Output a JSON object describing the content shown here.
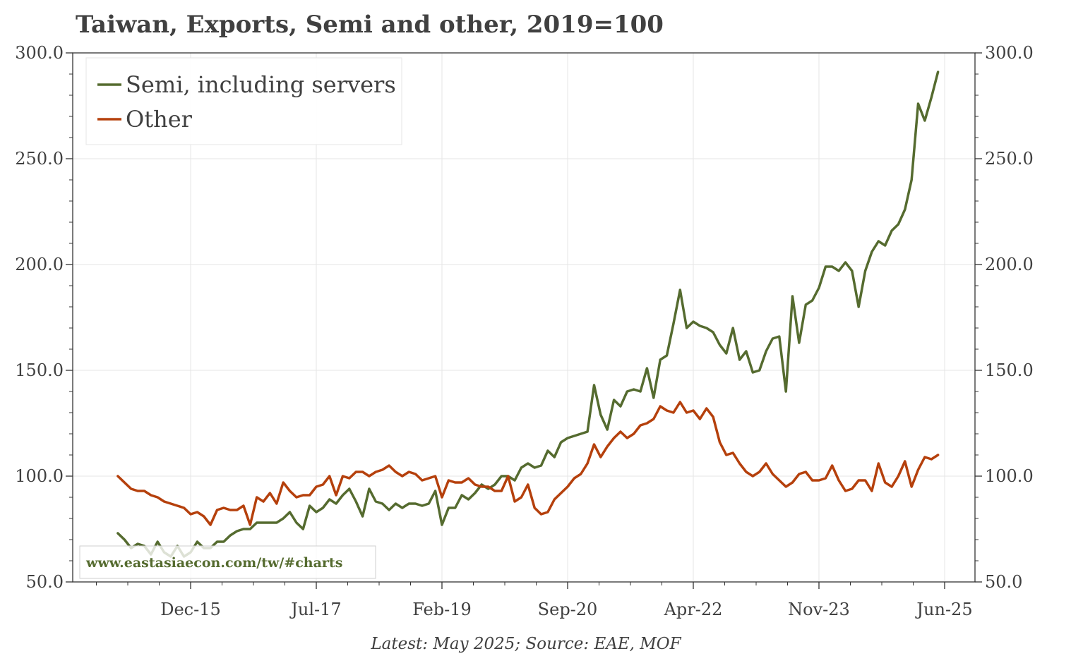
{
  "chart_data": {
    "type": "line",
    "title": "Taiwan, Exports, Semi and other, 2019=100",
    "footer": "Latest: May 2025; Source: EAE, MOF",
    "watermark": "www.eastasiaecon.com/tw/#charts",
    "ylim": [
      50,
      300
    ],
    "y_ticks": [
      "50.0",
      "100.0",
      "150.0",
      "200.0",
      "250.0",
      "300.0"
    ],
    "x_ticks": [
      "Dec-15",
      "Jul-17",
      "Feb-19",
      "Sep-20",
      "Apr-22",
      "Nov-23",
      "Jun-25"
    ],
    "legend_position": "top-left",
    "grid": true,
    "colors": {
      "semi": "#556b2f",
      "other": "#b5400c",
      "text": "#404040",
      "grid": "#e6e6e6"
    },
    "series": [
      {
        "name": "Semi, including servers",
        "color": "#556b2f",
        "points": [
          [
            "2015-01",
            73
          ],
          [
            "2015-02",
            70
          ],
          [
            "2015-03",
            66
          ],
          [
            "2015-04",
            68
          ],
          [
            "2015-05",
            67
          ],
          [
            "2015-06",
            63
          ],
          [
            "2015-07",
            69
          ],
          [
            "2015-08",
            64
          ],
          [
            "2015-09",
            62
          ],
          [
            "2015-10",
            67
          ],
          [
            "2015-11",
            62
          ],
          [
            "2015-12",
            64
          ],
          [
            "2016-01",
            69
          ],
          [
            "2016-02",
            66
          ],
          [
            "2016-03",
            66
          ],
          [
            "2016-04",
            69
          ],
          [
            "2016-05",
            69
          ],
          [
            "2016-06",
            72
          ],
          [
            "2016-07",
            74
          ],
          [
            "2016-08",
            75
          ],
          [
            "2016-09",
            75
          ],
          [
            "2016-10",
            78
          ],
          [
            "2016-11",
            78
          ],
          [
            "2016-12",
            78
          ],
          [
            "2017-01",
            78
          ],
          [
            "2017-02",
            80
          ],
          [
            "2017-03",
            83
          ],
          [
            "2017-04",
            78
          ],
          [
            "2017-05",
            75
          ],
          [
            "2017-06",
            86
          ],
          [
            "2017-07",
            83
          ],
          [
            "2017-08",
            85
          ],
          [
            "2017-09",
            89
          ],
          [
            "2017-10",
            87
          ],
          [
            "2017-11",
            91
          ],
          [
            "2017-12",
            94
          ],
          [
            "2018-01",
            88
          ],
          [
            "2018-02",
            81
          ],
          [
            "2018-03",
            94
          ],
          [
            "2018-04",
            88
          ],
          [
            "2018-05",
            87
          ],
          [
            "2018-06",
            84
          ],
          [
            "2018-07",
            87
          ],
          [
            "2018-08",
            85
          ],
          [
            "2018-09",
            87
          ],
          [
            "2018-10",
            87
          ],
          [
            "2018-11",
            86
          ],
          [
            "2018-12",
            87
          ],
          [
            "2019-01",
            93
          ],
          [
            "2019-02",
            77
          ],
          [
            "2019-03",
            85
          ],
          [
            "2019-04",
            85
          ],
          [
            "2019-05",
            91
          ],
          [
            "2019-06",
            89
          ],
          [
            "2019-07",
            92
          ],
          [
            "2019-08",
            96
          ],
          [
            "2019-09",
            94
          ],
          [
            "2019-10",
            96
          ],
          [
            "2019-11",
            100
          ],
          [
            "2019-12",
            100
          ],
          [
            "2020-01",
            98
          ],
          [
            "2020-02",
            104
          ],
          [
            "2020-03",
            106
          ],
          [
            "2020-04",
            104
          ],
          [
            "2020-05",
            105
          ],
          [
            "2020-06",
            112
          ],
          [
            "2020-07",
            109
          ],
          [
            "2020-08",
            116
          ],
          [
            "2020-09",
            118
          ],
          [
            "2020-10",
            119
          ],
          [
            "2020-11",
            120
          ],
          [
            "2020-12",
            121
          ],
          [
            "2021-01",
            143
          ],
          [
            "2021-02",
            129
          ],
          [
            "2021-03",
            122
          ],
          [
            "2021-04",
            136
          ],
          [
            "2021-05",
            133
          ],
          [
            "2021-06",
            140
          ],
          [
            "2021-07",
            141
          ],
          [
            "2021-08",
            140
          ],
          [
            "2021-09",
            151
          ],
          [
            "2021-10",
            137
          ],
          [
            "2021-11",
            155
          ],
          [
            "2021-12",
            157
          ],
          [
            "2022-01",
            172
          ],
          [
            "2022-02",
            188
          ],
          [
            "2022-03",
            170
          ],
          [
            "2022-04",
            173
          ],
          [
            "2022-05",
            171
          ],
          [
            "2022-06",
            170
          ],
          [
            "2022-07",
            168
          ],
          [
            "2022-08",
            162
          ],
          [
            "2022-09",
            158
          ],
          [
            "2022-10",
            170
          ],
          [
            "2022-11",
            155
          ],
          [
            "2022-12",
            159
          ],
          [
            "2023-01",
            149
          ],
          [
            "2023-02",
            150
          ],
          [
            "2023-03",
            159
          ],
          [
            "2023-04",
            165
          ],
          [
            "2023-05",
            166
          ],
          [
            "2023-06",
            140
          ],
          [
            "2023-07",
            185
          ],
          [
            "2023-08",
            163
          ],
          [
            "2023-09",
            181
          ],
          [
            "2023-10",
            183
          ],
          [
            "2023-11",
            189
          ],
          [
            "2023-12",
            199
          ],
          [
            "2024-01",
            199
          ],
          [
            "2024-02",
            197
          ],
          [
            "2024-03",
            201
          ],
          [
            "2024-04",
            197
          ],
          [
            "2024-05",
            180
          ],
          [
            "2024-06",
            197
          ],
          [
            "2024-07",
            206
          ],
          [
            "2024-08",
            211
          ],
          [
            "2024-09",
            209
          ],
          [
            "2024-10",
            216
          ],
          [
            "2024-11",
            219
          ],
          [
            "2024-12",
            226
          ],
          [
            "2025-01",
            240
          ],
          [
            "2025-02",
            276
          ],
          [
            "2025-03",
            268
          ],
          [
            "2025-04",
            279
          ],
          [
            "2025-05",
            291
          ]
        ]
      },
      {
        "name": "Other",
        "color": "#b5400c",
        "points": [
          [
            "2015-01",
            100
          ],
          [
            "2015-02",
            97
          ],
          [
            "2015-03",
            94
          ],
          [
            "2015-04",
            93
          ],
          [
            "2015-05",
            93
          ],
          [
            "2015-06",
            91
          ],
          [
            "2015-07",
            90
          ],
          [
            "2015-08",
            88
          ],
          [
            "2015-09",
            87
          ],
          [
            "2015-10",
            86
          ],
          [
            "2015-11",
            85
          ],
          [
            "2015-12",
            82
          ],
          [
            "2016-01",
            83
          ],
          [
            "2016-02",
            81
          ],
          [
            "2016-03",
            77
          ],
          [
            "2016-04",
            84
          ],
          [
            "2016-05",
            85
          ],
          [
            "2016-06",
            84
          ],
          [
            "2016-07",
            84
          ],
          [
            "2016-08",
            86
          ],
          [
            "2016-09",
            77
          ],
          [
            "2016-10",
            90
          ],
          [
            "2016-11",
            88
          ],
          [
            "2016-12",
            92
          ],
          [
            "2017-01",
            87
          ],
          [
            "2017-02",
            97
          ],
          [
            "2017-03",
            93
          ],
          [
            "2017-04",
            90
          ],
          [
            "2017-05",
            91
          ],
          [
            "2017-06",
            91
          ],
          [
            "2017-07",
            95
          ],
          [
            "2017-08",
            96
          ],
          [
            "2017-09",
            100
          ],
          [
            "2017-10",
            91
          ],
          [
            "2017-11",
            100
          ],
          [
            "2017-12",
            99
          ],
          [
            "2018-01",
            102
          ],
          [
            "2018-02",
            102
          ],
          [
            "2018-03",
            100
          ],
          [
            "2018-04",
            102
          ],
          [
            "2018-05",
            103
          ],
          [
            "2018-06",
            105
          ],
          [
            "2018-07",
            102
          ],
          [
            "2018-08",
            100
          ],
          [
            "2018-09",
            102
          ],
          [
            "2018-10",
            101
          ],
          [
            "2018-11",
            98
          ],
          [
            "2018-12",
            99
          ],
          [
            "2019-01",
            100
          ],
          [
            "2019-02",
            90
          ],
          [
            "2019-03",
            98
          ],
          [
            "2019-04",
            97
          ],
          [
            "2019-05",
            97
          ],
          [
            "2019-06",
            99
          ],
          [
            "2019-07",
            96
          ],
          [
            "2019-08",
            95
          ],
          [
            "2019-09",
            95
          ],
          [
            "2019-10",
            93
          ],
          [
            "2019-11",
            93
          ],
          [
            "2019-12",
            100
          ],
          [
            "2020-01",
            88
          ],
          [
            "2020-02",
            90
          ],
          [
            "2020-03",
            96
          ],
          [
            "2020-04",
            85
          ],
          [
            "2020-05",
            82
          ],
          [
            "2020-06",
            83
          ],
          [
            "2020-07",
            89
          ],
          [
            "2020-08",
            92
          ],
          [
            "2020-09",
            95
          ],
          [
            "2020-10",
            99
          ],
          [
            "2020-11",
            101
          ],
          [
            "2020-12",
            106
          ],
          [
            "2021-01",
            115
          ],
          [
            "2021-02",
            109
          ],
          [
            "2021-03",
            114
          ],
          [
            "2021-04",
            118
          ],
          [
            "2021-05",
            121
          ],
          [
            "2021-06",
            118
          ],
          [
            "2021-07",
            120
          ],
          [
            "2021-08",
            124
          ],
          [
            "2021-09",
            125
          ],
          [
            "2021-10",
            127
          ],
          [
            "2021-11",
            133
          ],
          [
            "2021-12",
            131
          ],
          [
            "2022-01",
            130
          ],
          [
            "2022-02",
            135
          ],
          [
            "2022-03",
            130
          ],
          [
            "2022-04",
            131
          ],
          [
            "2022-05",
            127
          ],
          [
            "2022-06",
            132
          ],
          [
            "2022-07",
            128
          ],
          [
            "2022-08",
            116
          ],
          [
            "2022-09",
            110
          ],
          [
            "2022-10",
            111
          ],
          [
            "2022-11",
            106
          ],
          [
            "2022-12",
            102
          ],
          [
            "2023-01",
            100
          ],
          [
            "2023-02",
            102
          ],
          [
            "2023-03",
            106
          ],
          [
            "2023-04",
            101
          ],
          [
            "2023-05",
            98
          ],
          [
            "2023-06",
            95
          ],
          [
            "2023-07",
            97
          ],
          [
            "2023-08",
            101
          ],
          [
            "2023-09",
            102
          ],
          [
            "2023-10",
            98
          ],
          [
            "2023-11",
            98
          ],
          [
            "2023-12",
            99
          ],
          [
            "2024-01",
            105
          ],
          [
            "2024-02",
            98
          ],
          [
            "2024-03",
            93
          ],
          [
            "2024-04",
            94
          ],
          [
            "2024-05",
            98
          ],
          [
            "2024-06",
            98
          ],
          [
            "2024-07",
            93
          ],
          [
            "2024-08",
            106
          ],
          [
            "2024-09",
            97
          ],
          [
            "2024-10",
            95
          ],
          [
            "2024-11",
            100
          ],
          [
            "2024-12",
            107
          ],
          [
            "2025-01",
            95
          ],
          [
            "2025-02",
            103
          ],
          [
            "2025-03",
            109
          ],
          [
            "2025-04",
            108
          ],
          [
            "2025-05",
            110
          ]
        ]
      }
    ]
  }
}
